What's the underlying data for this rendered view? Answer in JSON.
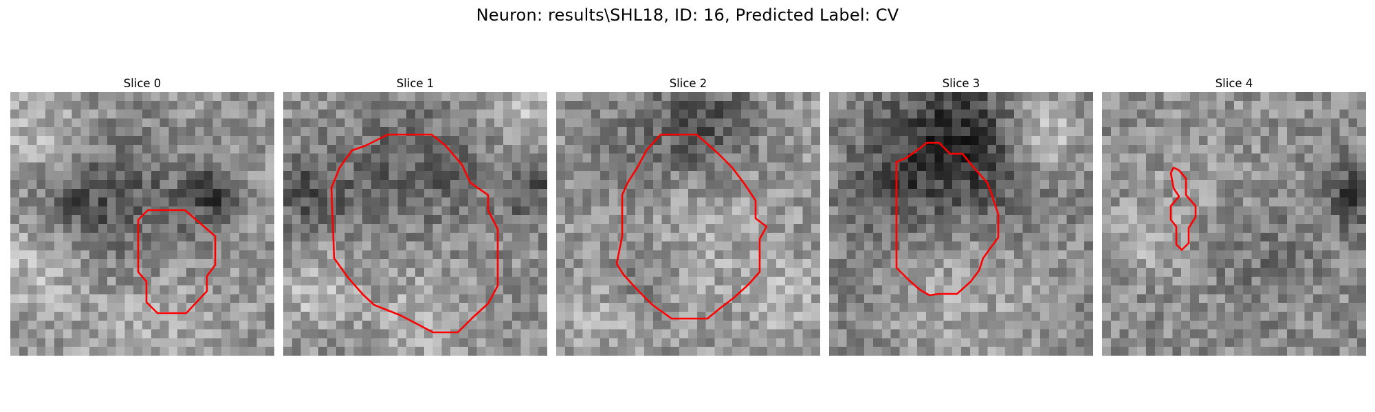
{
  "figure": {
    "title": "Neuron: results\\SHL18, ID: 16, Predicted Label: CV",
    "contour_color": "#ff0000",
    "image_colormap": "gray",
    "panels": [
      {
        "title": "Slice 0"
      },
      {
        "title": "Slice 1"
      },
      {
        "title": "Slice 2"
      },
      {
        "title": "Slice 3"
      },
      {
        "title": "Slice 4"
      }
    ]
  }
}
